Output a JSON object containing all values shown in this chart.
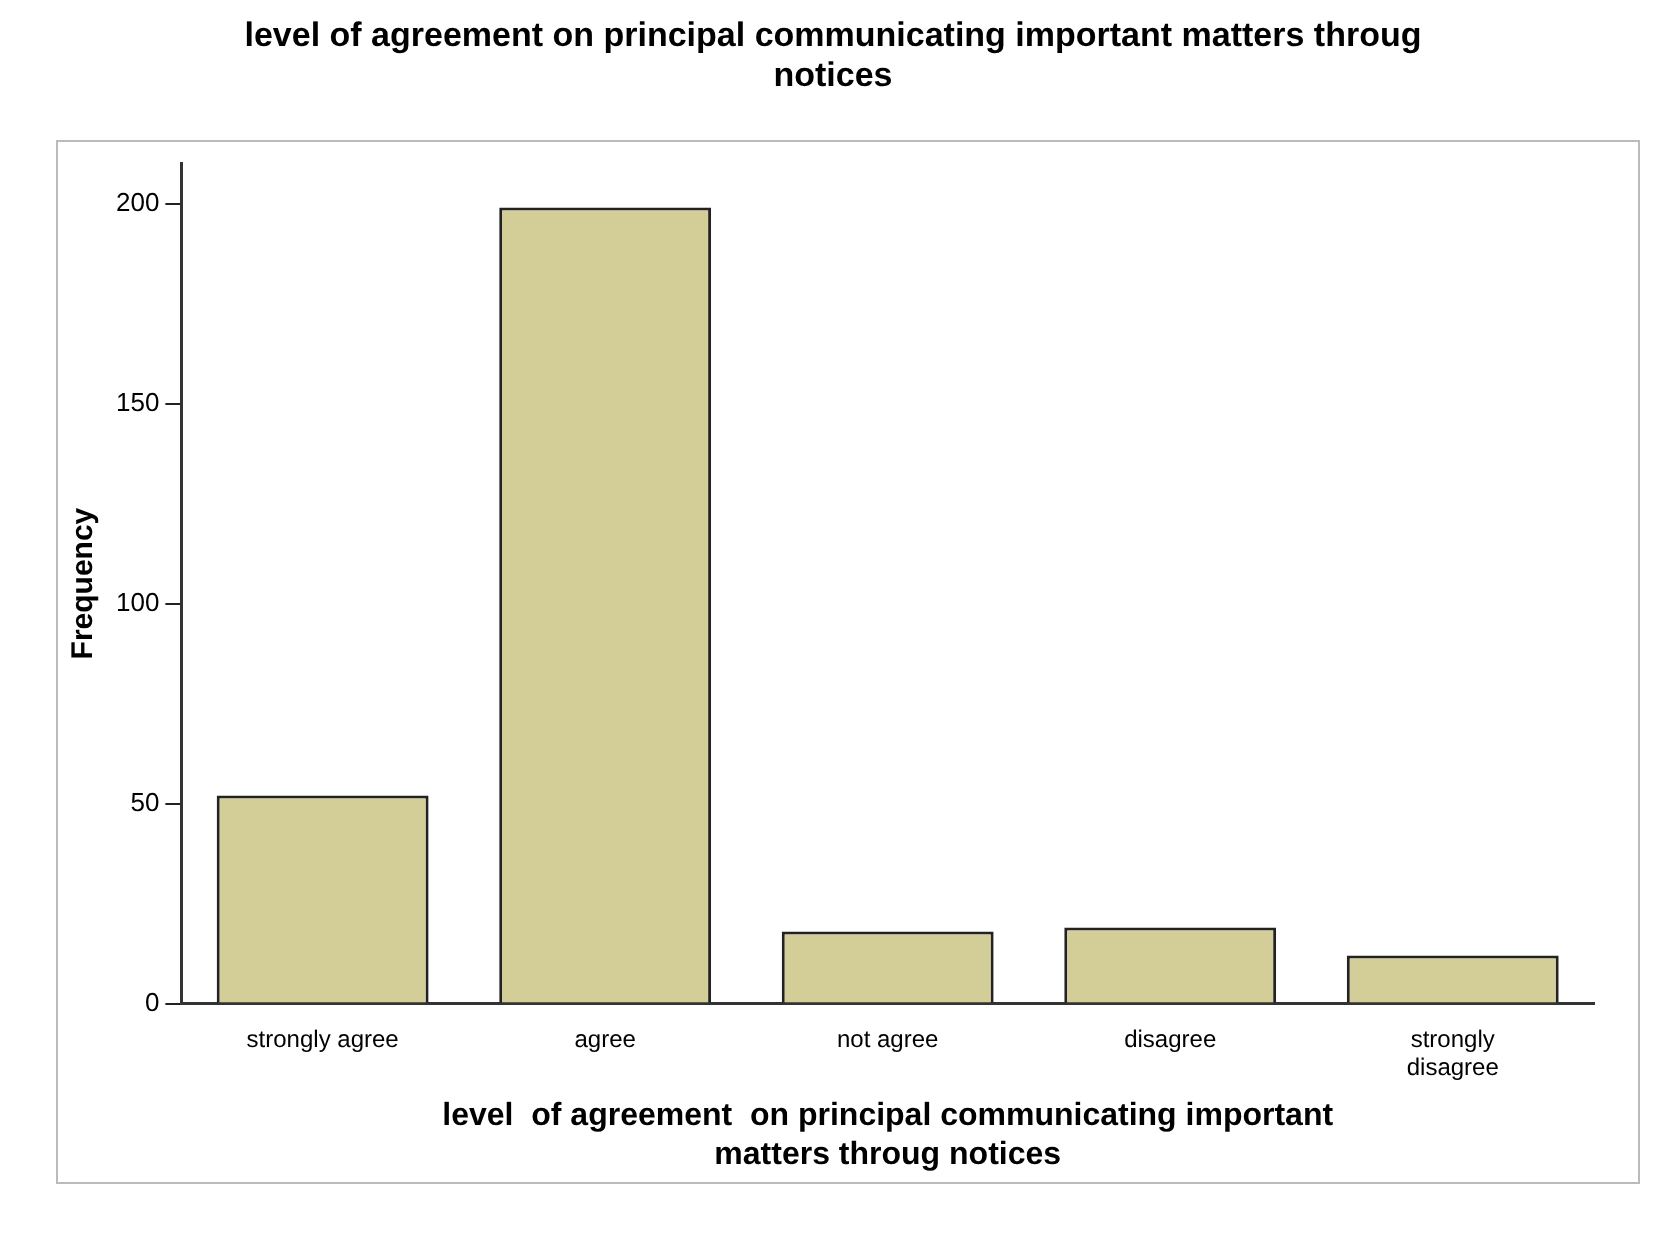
{
  "chart_data": {
    "type": "bar",
    "title": "level  of agreement  on principal communicating important matters throug notices",
    "xlabel": "level  of agreement  on principal communicating important matters throug notices",
    "ylabel": "Frequency",
    "categories": [
      "strongly agree",
      "agree",
      "not agree",
      "disagree",
      "strongly disagree"
    ],
    "values": [
      52,
      199,
      18,
      19,
      12
    ],
    "color": "#d3cd98",
    "ylim": [
      0,
      210
    ],
    "yticks": [
      0,
      50,
      100,
      150,
      200
    ],
    "grid": false,
    "legend": false
  }
}
